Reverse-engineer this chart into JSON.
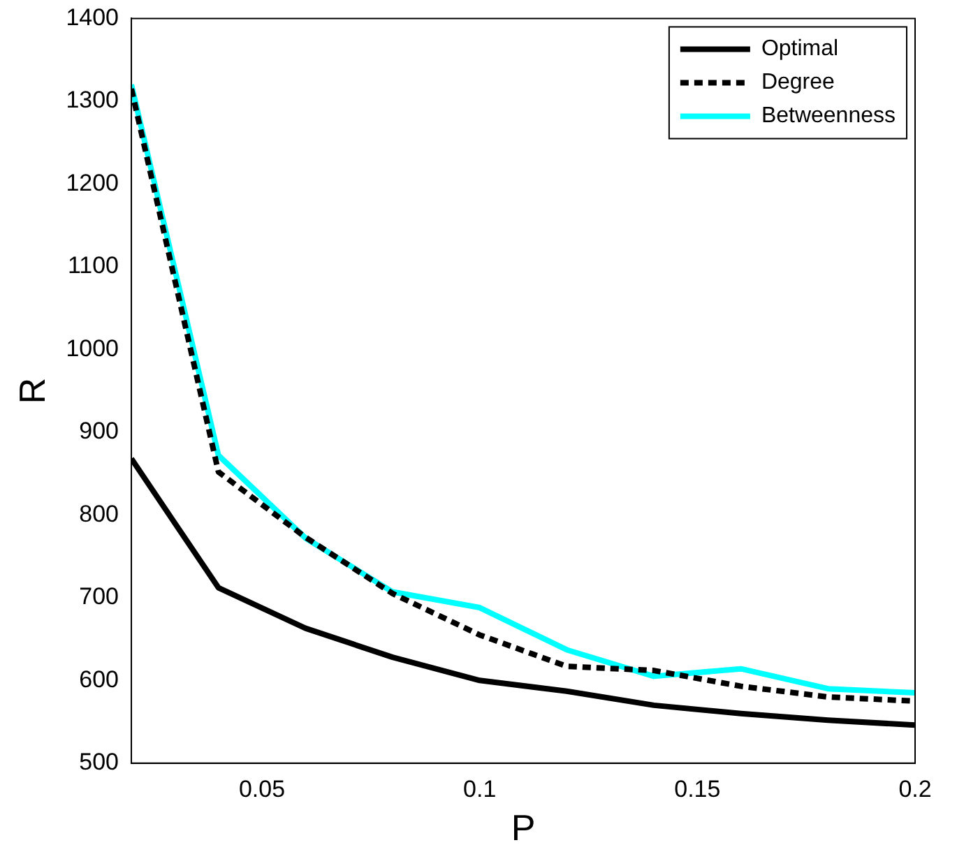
{
  "chart_data": {
    "type": "line",
    "xlabel": "P",
    "ylabel": "R",
    "x": [
      0.02,
      0.04,
      0.06,
      0.08,
      0.1,
      0.12,
      0.14,
      0.16,
      0.18,
      0.2
    ],
    "series": [
      {
        "name": "Optimal",
        "color": "#000000",
        "line_style": "solid",
        "values": [
          868,
          712,
          663,
          628,
          600,
          587,
          570,
          560,
          552,
          546
        ]
      },
      {
        "name": "Degree",
        "color": "#000000",
        "line_style": "dashed",
        "values": [
          1315,
          852,
          773,
          705,
          655,
          617,
          612,
          593,
          580,
          575
        ]
      },
      {
        "name": "Betweenness",
        "color": "#00ffff",
        "line_style": "solid",
        "values": [
          1320,
          872,
          772,
          707,
          688,
          637,
          605,
          614,
          590,
          585
        ]
      }
    ],
    "xlim": [
      0.02,
      0.2
    ],
    "xticks": [
      0.05,
      0.1,
      0.15,
      0.2
    ],
    "ylim": [
      500,
      1400
    ],
    "yticks": [
      500,
      600,
      700,
      800,
      900,
      1000,
      1100,
      1200,
      1300,
      1400
    ],
    "grid": false,
    "legend": "top right",
    "marker": "none"
  }
}
